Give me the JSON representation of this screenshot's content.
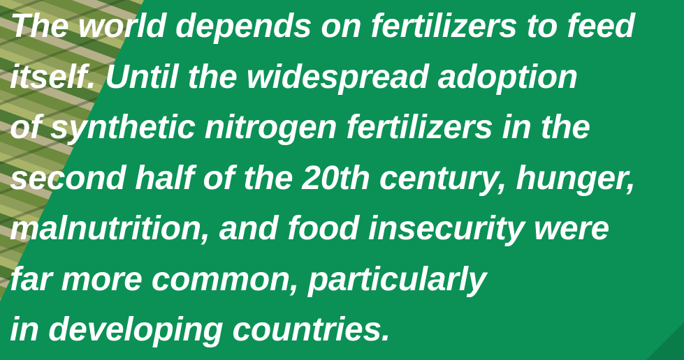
{
  "text": {
    "lines": [
      "The world depends on fertilizers to feed",
      "itself. Until the widespread adoption",
      "of synthetic nitrogen fertilizers in the",
      "second half of the 20th century, hunger,",
      "malnutrition, and food insecurity were",
      "far more common, particularly",
      "in developing countries."
    ]
  }
}
